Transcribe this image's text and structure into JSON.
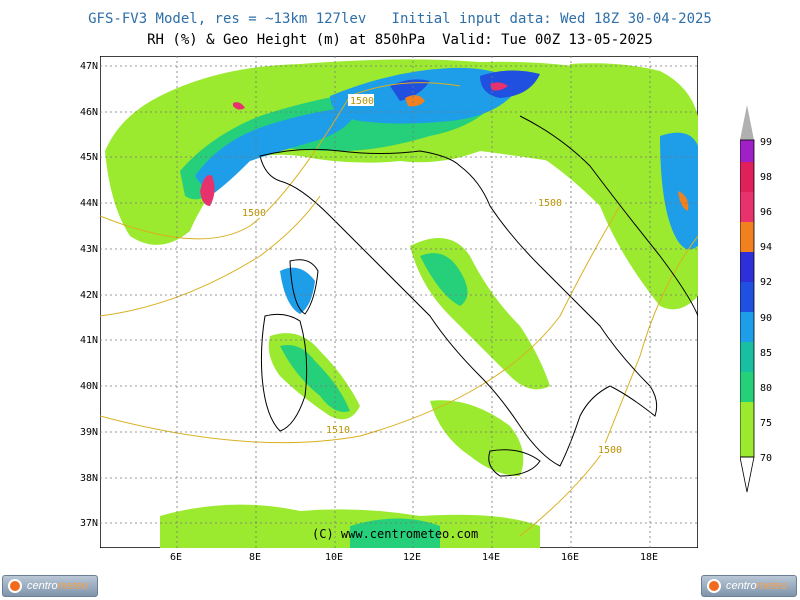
{
  "header": {
    "title_line1": "GFS-FV3 Model, res = ~13km 127lev   Initial input data: Wed 18Z 30-04-2025",
    "title_line2": "RH (%) & Geo Height (m) at 850hPa  Valid: Tue 00Z 13-05-2025"
  },
  "map": {
    "lat_labels": [
      "47N",
      "46N",
      "45N",
      "44N",
      "43N",
      "42N",
      "41N",
      "40N",
      "39N",
      "38N",
      "37N"
    ],
    "lon_labels": [
      "6E",
      "8E",
      "10E",
      "12E",
      "14E",
      "16E",
      "18E"
    ],
    "contour_labels": [
      "1500",
      "1500",
      "1500",
      "1510",
      "1500"
    ],
    "copyright": "(C) www.centrometeo.com",
    "colors": {
      "c70": "#9bea2f",
      "c75": "#26d07a",
      "c80": "#19bfa0",
      "c85": "#1e9ee8",
      "c90": "#1f50e0",
      "c92": "#2f2fd8",
      "c94": "#f08020",
      "c96": "#e8326e",
      "c98": "#e0205a",
      "c99": "#a020c8",
      "contour": "#d8b020",
      "border": "#000000"
    }
  },
  "scale": {
    "labels": [
      "99",
      "98",
      "96",
      "94",
      "92",
      "90",
      "85",
      "80",
      "75",
      "70"
    ]
  },
  "logo": {
    "text_main": "centro",
    "text_accent": "meteo"
  }
}
